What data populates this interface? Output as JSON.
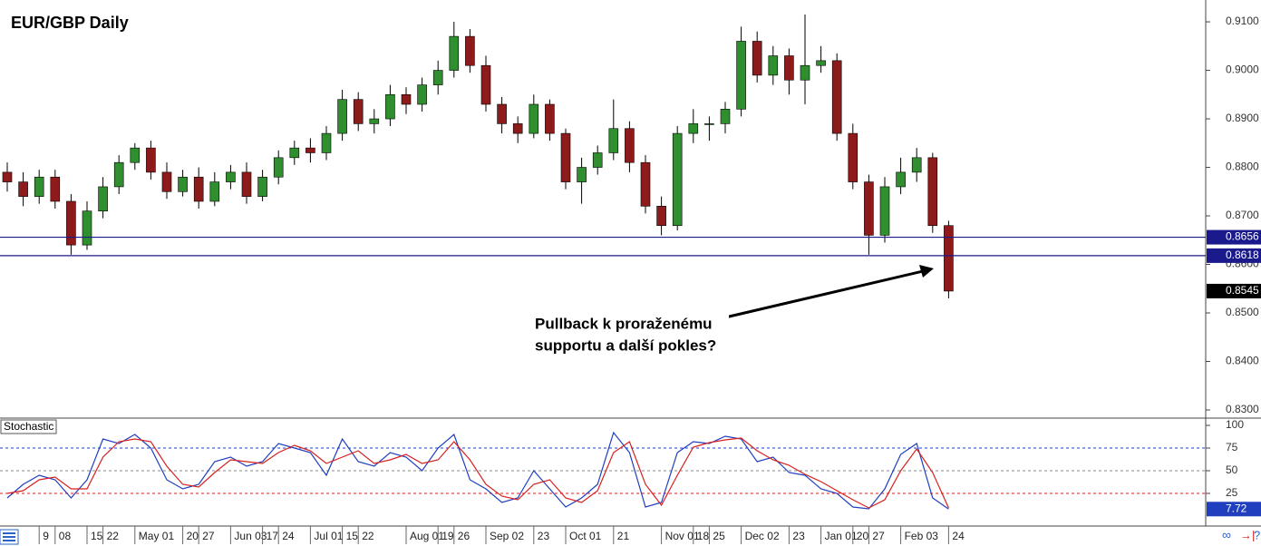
{
  "chart_data": [
    {
      "type": "candlestick",
      "title": "EUR/GBP Daily",
      "categories": [
        null,
        null,
        "9",
        "08",
        null,
        "15",
        "22",
        null,
        "May 01",
        null,
        null,
        "20",
        "27",
        null,
        "Jun 03",
        null,
        "17",
        "24",
        null,
        "Jul 01",
        null,
        "15",
        "22",
        null,
        null,
        "Aug 01",
        null,
        "19",
        "26",
        null,
        "Sep 02",
        null,
        null,
        "23",
        null,
        "Oct 01",
        null,
        null,
        "21",
        null,
        null,
        "Nov 01",
        null,
        "18",
        "25",
        null,
        "Dec 02",
        null,
        null,
        "23",
        null,
        "Jan 01",
        null,
        "20",
        "27",
        null,
        "Feb 03",
        null,
        null,
        "24"
      ],
      "open": [
        0.879,
        0.877,
        0.874,
        0.878,
        0.873,
        0.864,
        0.871,
        0.876,
        0.881,
        0.884,
        0.879,
        0.875,
        0.878,
        0.873,
        0.877,
        0.879,
        0.874,
        0.878,
        0.882,
        0.884,
        0.883,
        0.887,
        0.894,
        0.889,
        0.89,
        0.895,
        0.893,
        0.897,
        0.9,
        0.907,
        0.901,
        0.893,
        0.889,
        0.887,
        0.893,
        0.887,
        0.877,
        0.88,
        0.883,
        0.888,
        0.881,
        0.872,
        0.868,
        0.887,
        0.889,
        0.889,
        0.892,
        0.906,
        0.899,
        0.903,
        0.898,
        0.901,
        0.902,
        0.887,
        0.877,
        0.866,
        0.876,
        0.879,
        0.882,
        0.868
      ],
      "high": [
        0.881,
        0.879,
        0.8795,
        0.8795,
        0.8745,
        0.873,
        0.878,
        0.8825,
        0.885,
        0.8855,
        0.881,
        0.8795,
        0.88,
        0.879,
        0.8805,
        0.881,
        0.8795,
        0.8835,
        0.8855,
        0.886,
        0.8885,
        0.896,
        0.8955,
        0.892,
        0.897,
        0.8965,
        0.8985,
        0.902,
        0.91,
        0.9085,
        0.903,
        0.8945,
        0.8905,
        0.895,
        0.894,
        0.888,
        0.882,
        0.8845,
        0.894,
        0.8895,
        0.8825,
        0.874,
        0.8885,
        0.892,
        0.8905,
        0.8935,
        0.909,
        0.908,
        0.905,
        0.9045,
        0.9115,
        0.905,
        0.9035,
        0.889,
        0.8785,
        0.878,
        0.882,
        0.884,
        0.883,
        0.869
      ],
      "low": [
        0.875,
        0.872,
        0.8725,
        0.8715,
        0.862,
        0.863,
        0.8695,
        0.8745,
        0.8795,
        0.8775,
        0.8735,
        0.874,
        0.8715,
        0.872,
        0.8755,
        0.8725,
        0.873,
        0.8765,
        0.8805,
        0.881,
        0.8815,
        0.8855,
        0.8875,
        0.887,
        0.8885,
        0.891,
        0.8915,
        0.895,
        0.8985,
        0.8995,
        0.8915,
        0.887,
        0.885,
        0.886,
        0.8855,
        0.8755,
        0.8725,
        0.8785,
        0.8815,
        0.879,
        0.8705,
        0.866,
        0.867,
        0.885,
        0.8855,
        0.887,
        0.8905,
        0.8975,
        0.897,
        0.895,
        0.893,
        0.8995,
        0.8855,
        0.8755,
        0.862,
        0.8645,
        0.8745,
        0.877,
        0.8665,
        0.853
      ],
      "close": [
        0.877,
        0.874,
        0.878,
        0.873,
        0.864,
        0.871,
        0.876,
        0.881,
        0.884,
        0.879,
        0.875,
        0.878,
        0.873,
        0.877,
        0.879,
        0.874,
        0.878,
        0.882,
        0.884,
        0.883,
        0.887,
        0.894,
        0.889,
        0.89,
        0.895,
        0.893,
        0.897,
        0.9,
        0.907,
        0.901,
        0.893,
        0.889,
        0.887,
        0.893,
        0.887,
        0.877,
        0.88,
        0.883,
        0.888,
        0.881,
        0.872,
        0.868,
        0.887,
        0.889,
        0.889,
        0.892,
        0.906,
        0.899,
        0.903,
        0.898,
        0.901,
        0.902,
        0.887,
        0.877,
        0.866,
        0.876,
        0.879,
        0.882,
        0.868,
        0.8545
      ],
      "up_color": "#2f8f2f",
      "down_color": "#8e1b1b",
      "ylim": [
        0.8285,
        0.9145
      ],
      "yticks": [
        {
          "value": 0.83,
          "label": "0.8300"
        },
        {
          "value": 0.84,
          "label": "0.8400"
        },
        {
          "value": 0.85,
          "label": "0.8500"
        },
        {
          "value": 0.86,
          "label": "0.8600"
        },
        {
          "value": 0.87,
          "label": "0.8700"
        },
        {
          "value": 0.88,
          "label": "0.8800"
        },
        {
          "value": 0.89,
          "label": "0.8900"
        },
        {
          "value": 0.9,
          "label": "0.9000"
        },
        {
          "value": 0.91,
          "label": "0.9100"
        }
      ],
      "hlines": [
        0.8656,
        0.8618
      ],
      "hline_color": "#1a1a8c",
      "annotation": [
        "Pullback k proraženému",
        "supportu a další pokles?"
      ]
    },
    {
      "type": "line",
      "title": "Stochastic",
      "series": [
        {
          "color": "#1f3fbf",
          "values": [
            20,
            35,
            45,
            40,
            20,
            40,
            85,
            80,
            90,
            75,
            40,
            30,
            35,
            60,
            65,
            55,
            60,
            80,
            75,
            70,
            45,
            85,
            60,
            55,
            70,
            65,
            50,
            75,
            90,
            40,
            30,
            15,
            20,
            50,
            30,
            10,
            20,
            35,
            92,
            70,
            10,
            15,
            70,
            82,
            80,
            88,
            85,
            60,
            65,
            48,
            45,
            30,
            25,
            10,
            8,
            30,
            68,
            80,
            20,
            7.72
          ]
        },
        {
          "color": "#d62020",
          "values": [
            25,
            28,
            40,
            43,
            30,
            30,
            65,
            82,
            85,
            82,
            55,
            35,
            32,
            48,
            62,
            60,
            58,
            70,
            78,
            72,
            58,
            65,
            72,
            58,
            62,
            68,
            58,
            62,
            82,
            62,
            35,
            22,
            18,
            35,
            40,
            20,
            15,
            28,
            70,
            82,
            35,
            12,
            45,
            76,
            81,
            84,
            86,
            72,
            62,
            56,
            46,
            38,
            28,
            18,
            9,
            18,
            50,
            74,
            48,
            9
          ]
        }
      ],
      "ylim": [
        -11,
        107
      ],
      "yticks": [
        25,
        50,
        75,
        100
      ],
      "levels": [
        75,
        50,
        25
      ],
      "level_colors": [
        "#1f3fbf",
        "#888888",
        "#d62020"
      ]
    }
  ]
}
